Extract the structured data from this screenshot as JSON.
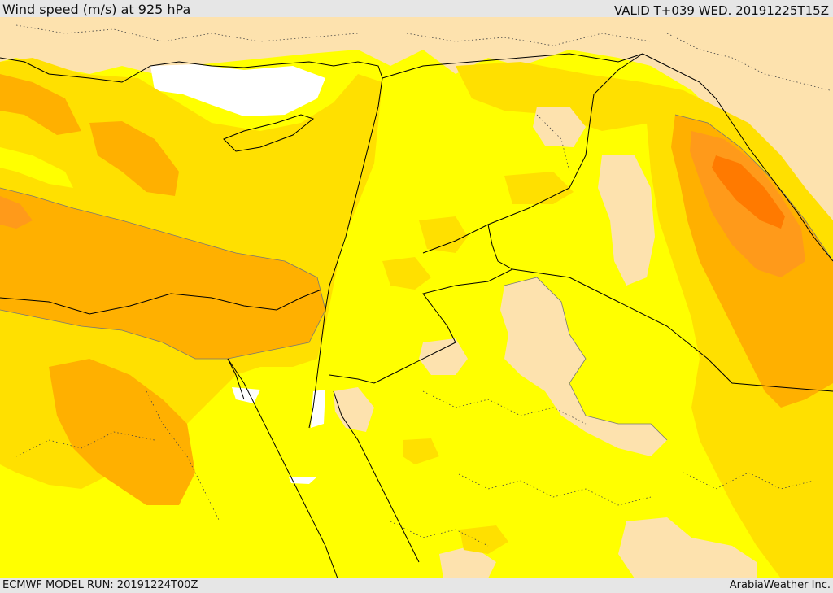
{
  "header": {
    "title": "Wind speed (m/s) at 925 hPa",
    "valid": "VALID T+039 WED. 20191225T15Z"
  },
  "footer": {
    "model_run": "ECMWF MODEL RUN: 20191224T00Z",
    "credit": "ArabiaWeather Inc."
  },
  "map": {
    "type": "filled-contour wind speed map",
    "region": "Eastern Mediterranean and Middle East",
    "colors": {
      "speed_lowest": "#ffffff",
      "speed_low": "#fde2ae",
      "speed_mid_low": "#ffff00",
      "speed_mid": "#ffe000",
      "speed_mid_high": "#ffb000",
      "speed_high": "#ff9a1a",
      "speed_highest": "#ff7a00",
      "borders": "#000000"
    }
  }
}
